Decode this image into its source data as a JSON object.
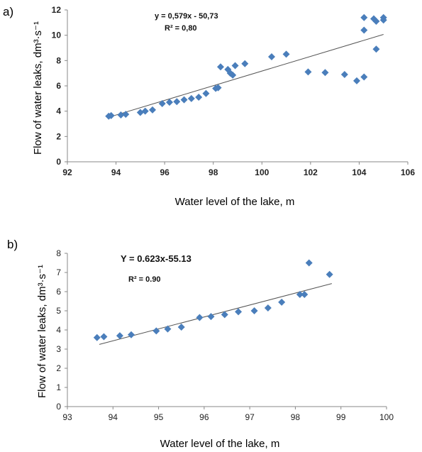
{
  "chart_data": [
    {
      "type": "scatter",
      "panel_label": "a)",
      "xlabel": "Water level of the lake, m",
      "ylabel": "Flow of water leaks, dm³·s⁻¹",
      "xlim": [
        92,
        106
      ],
      "ylim": [
        0,
        12
      ],
      "xticks": [
        "92",
        "94",
        "96",
        "98",
        "100",
        "102",
        "104",
        "106"
      ],
      "yticks": [
        "0",
        "2",
        "4",
        "6",
        "8",
        "10",
        "12"
      ],
      "equation": "y = 0,579x - 50,73",
      "r2": "R² = 0,80",
      "trendline": {
        "slope": 0.579,
        "intercept": -50.73,
        "x_range": [
          93.7,
          105.0
        ]
      },
      "marker_color": "#4a7ebb",
      "line_color": "#555555",
      "grid": false,
      "series": [
        {
          "x": [
            93.7,
            93.8,
            94.2,
            94.4,
            95.0,
            95.2,
            95.5,
            95.9,
            96.2,
            96.5,
            96.8,
            97.1,
            97.4,
            97.7,
            98.1,
            98.2,
            98.3,
            98.6,
            98.7,
            98.8,
            98.9,
            99.3,
            100.4,
            101.0,
            101.9,
            102.6,
            103.4,
            103.9,
            104.2,
            104.2,
            104.2,
            104.6,
            104.7,
            104.7,
            105.0,
            105.0
          ],
          "y": [
            3.6,
            3.65,
            3.7,
            3.75,
            3.9,
            4.0,
            4.1,
            4.6,
            4.7,
            4.75,
            4.9,
            5.0,
            5.1,
            5.4,
            5.8,
            5.85,
            7.5,
            7.3,
            7.0,
            6.85,
            7.6,
            7.75,
            8.3,
            8.5,
            7.1,
            7.05,
            6.9,
            6.4,
            6.7,
            10.4,
            11.4,
            11.3,
            11.1,
            8.9,
            11.2,
            11.4
          ]
        }
      ]
    },
    {
      "type": "scatter",
      "panel_label": "b)",
      "xlabel": "Water level of the lake, m",
      "ylabel": "Flow of water leaks, dm³·s⁻¹",
      "xlim": [
        93,
        100
      ],
      "ylim": [
        0,
        8
      ],
      "xticks": [
        "93",
        "94",
        "95",
        "96",
        "97",
        "98",
        "99",
        "100"
      ],
      "yticks": [
        "0",
        "1",
        "2",
        "3",
        "4",
        "5",
        "6",
        "7",
        "8"
      ],
      "equation": "Y = 0.623x-55.13",
      "r2": "R² = 0.90",
      "trendline": {
        "slope": 0.623,
        "intercept": -55.13,
        "x_range": [
          93.7,
          98.8
        ]
      },
      "marker_color": "#4a7ebb",
      "line_color": "#555555",
      "grid": false,
      "series": [
        {
          "x": [
            93.65,
            93.8,
            94.15,
            94.4,
            94.95,
            95.2,
            95.5,
            95.9,
            96.15,
            96.45,
            96.75,
            97.1,
            97.4,
            97.7,
            98.1,
            98.2,
            98.3,
            98.75
          ],
          "y": [
            3.6,
            3.65,
            3.7,
            3.75,
            3.95,
            4.05,
            4.15,
            4.65,
            4.7,
            4.8,
            4.95,
            5.0,
            5.15,
            5.45,
            5.85,
            5.85,
            7.5,
            6.9
          ]
        }
      ]
    }
  ]
}
